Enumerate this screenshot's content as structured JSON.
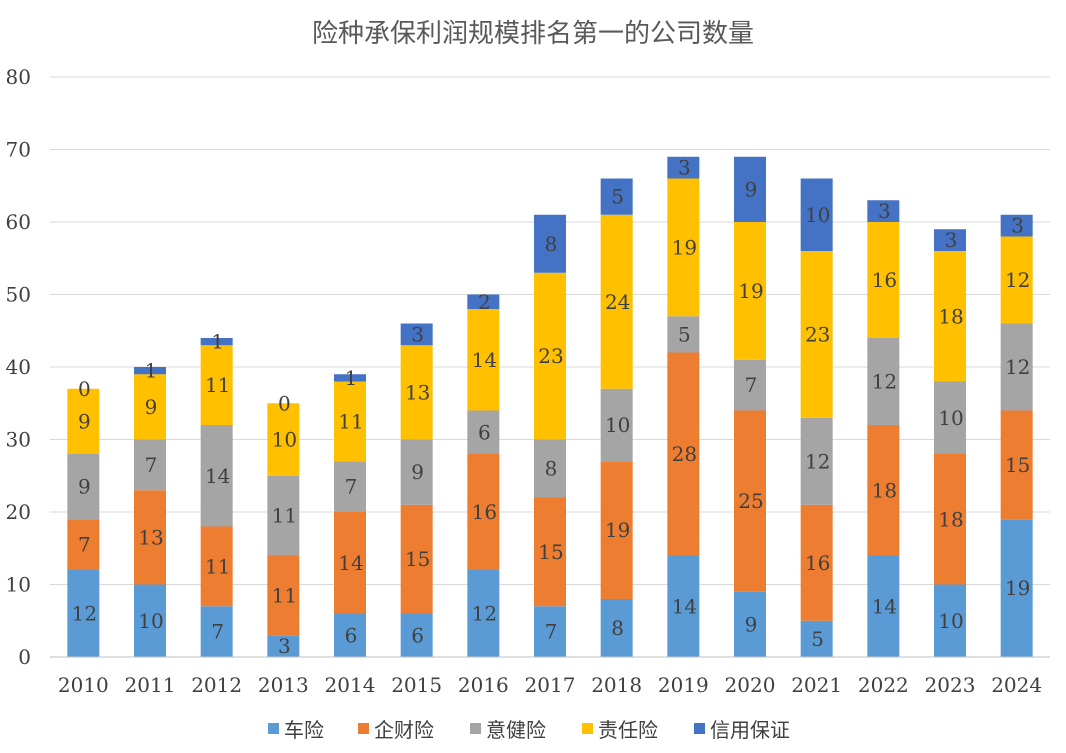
{
  "chart_data": {
    "type": "bar",
    "stacked": true,
    "title": "险种承保利润规模排名第一的公司数量",
    "xlabel": "",
    "ylabel": "",
    "ylim": [
      0,
      80
    ],
    "yticks": [
      0,
      10,
      20,
      30,
      40,
      50,
      60,
      70,
      80
    ],
    "grid": true,
    "legend_position": "bottom",
    "categories": [
      "2010",
      "2011",
      "2012",
      "2013",
      "2014",
      "2015",
      "2016",
      "2017",
      "2018",
      "2019",
      "2020",
      "2021",
      "2022",
      "2023",
      "2024"
    ],
    "series": [
      {
        "name": "车险",
        "color": "#5B9BD5",
        "values": [
          12,
          10,
          7,
          3,
          6,
          6,
          12,
          7,
          8,
          14,
          9,
          5,
          14,
          10,
          19
        ]
      },
      {
        "name": "企财险",
        "color": "#ED7D31",
        "values": [
          7,
          13,
          11,
          11,
          14,
          15,
          16,
          15,
          19,
          28,
          25,
          16,
          18,
          18,
          15
        ]
      },
      {
        "name": "意健险",
        "color": "#A5A5A5",
        "values": [
          9,
          7,
          14,
          11,
          7,
          9,
          6,
          8,
          10,
          5,
          7,
          12,
          12,
          10,
          12
        ]
      },
      {
        "name": "责任险",
        "color": "#FFC000",
        "values": [
          9,
          9,
          11,
          10,
          11,
          13,
          14,
          23,
          24,
          19,
          19,
          23,
          16,
          18,
          12
        ]
      },
      {
        "name": "信用保证",
        "color": "#4472C4",
        "values": [
          0,
          1,
          1,
          0,
          1,
          3,
          2,
          8,
          5,
          3,
          9,
          10,
          3,
          3,
          3
        ]
      }
    ]
  }
}
